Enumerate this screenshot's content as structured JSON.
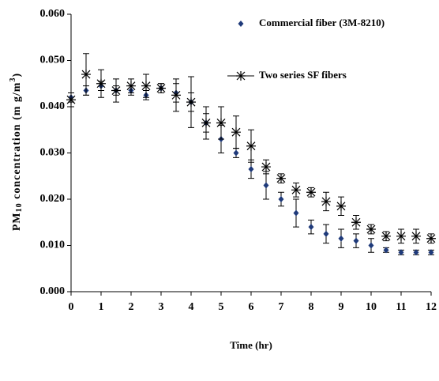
{
  "chart_data": {
    "type": "scatter",
    "xlabel": "Time (hr)",
    "ylabel": [
      "PM",
      "10",
      " concentration (m g/m",
      "3",
      ")"
    ],
    "xlim": [
      0,
      12
    ],
    "xticks": [
      0,
      1,
      2,
      3,
      4,
      5,
      6,
      7,
      8,
      9,
      10,
      11,
      12
    ],
    "ylim": [
      0,
      0.06
    ],
    "yticks": [
      {
        "value": 0,
        "label": "0.000"
      },
      {
        "value": 0.01,
        "label": "0.010"
      },
      {
        "value": 0.02,
        "label": "0.020"
      },
      {
        "value": 0.03,
        "label": "0.030"
      },
      {
        "value": 0.04,
        "label": "0.040"
      },
      {
        "value": 0.05,
        "label": "0.050"
      },
      {
        "value": 0.06,
        "label": "0.060"
      }
    ],
    "legend": "upper right",
    "x": [
      0,
      0.5,
      1,
      1.5,
      2,
      2.5,
      3,
      3.5,
      4,
      4.5,
      5,
      5.5,
      6,
      6.5,
      7,
      7.5,
      8,
      8.5,
      9,
      9.5,
      10,
      10.5,
      11,
      11.5,
      12
    ],
    "series": [
      {
        "name": "Commercial fiber (3M-8210)",
        "color": "#1f3a7a",
        "marker": "diamond",
        "values": [
          0.042,
          0.0435,
          0.0445,
          0.0435,
          0.0435,
          0.0425,
          0.044,
          0.043,
          0.041,
          0.0365,
          0.033,
          0.03,
          0.0265,
          0.023,
          0.02,
          0.017,
          0.014,
          0.0125,
          0.0115,
          0.011,
          0.01,
          0.009,
          0.0085,
          0.0085,
          0.0085
        ],
        "errors": [
          0.001,
          0.001,
          0.001,
          0.001,
          0.001,
          0.001,
          0.001,
          0.002,
          0.002,
          0.002,
          0.003,
          0.001,
          0.002,
          0.003,
          0.0015,
          0.003,
          0.0015,
          0.002,
          0.002,
          0.0015,
          0.0015,
          0.0005,
          0.0005,
          0.0005,
          0.0005
        ]
      },
      {
        "name": "Two series SF fibers",
        "color": "#000000",
        "marker": "asterisk",
        "values": [
          0.0415,
          0.047,
          0.045,
          0.0435,
          0.0445,
          0.0445,
          0.044,
          0.0425,
          0.041,
          0.0365,
          0.0365,
          0.0345,
          0.0315,
          0.027,
          0.0245,
          0.022,
          0.0215,
          0.0195,
          0.0185,
          0.015,
          0.0135,
          0.012,
          0.012,
          0.012,
          0.0115
        ],
        "errors": [
          0.0015,
          0.0045,
          0.003,
          0.0025,
          0.0015,
          0.0025,
          0.001,
          0.0035,
          0.0055,
          0.0035,
          0.0035,
          0.0035,
          0.0035,
          0.0015,
          0.001,
          0.0015,
          0.001,
          0.002,
          0.002,
          0.0015,
          0.001,
          0.001,
          0.0015,
          0.0015,
          0.001
        ]
      }
    ]
  }
}
